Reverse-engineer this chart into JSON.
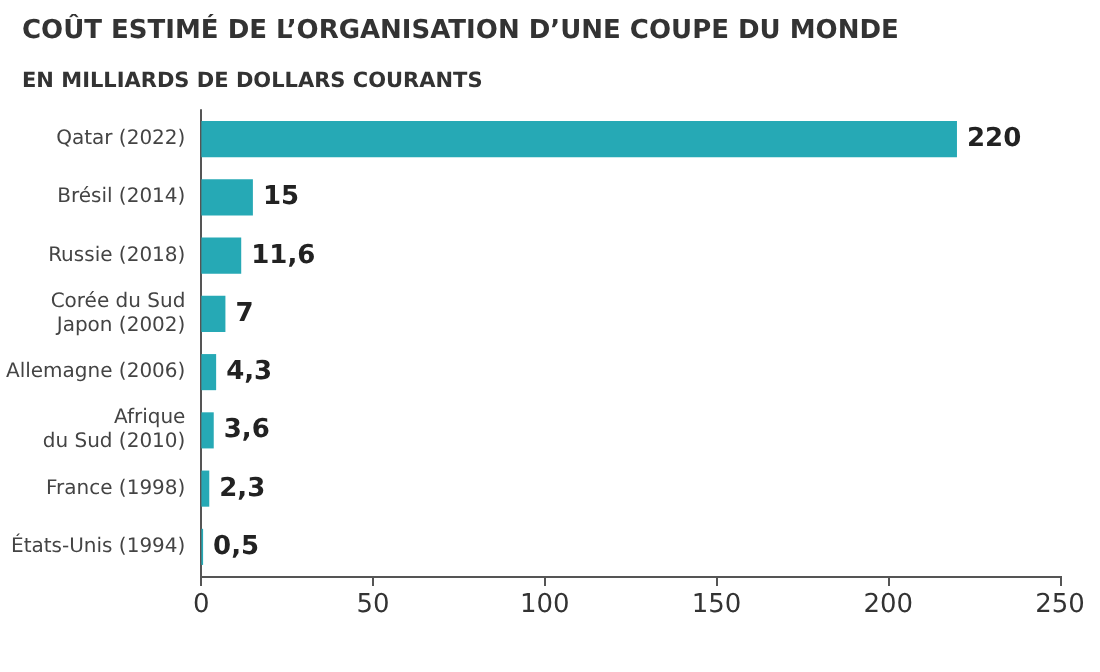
{
  "chart_data": {
    "type": "bar",
    "orientation": "horizontal",
    "title": "COÛT ESTIMÉ DE L’ORGANISATION D’UNE COUPE DU MONDE",
    "subtitle": "EN MILLIARDS DE DOLLARS COURANTS",
    "categories": [
      "Qatar (2022)",
      "Brésil (2014)",
      "Russie (2018)",
      "Corée du Sud\nJapon (2002)",
      "Allemagne (2006)",
      "Afrique\ndu Sud (2010)",
      "France (1998)",
      "États-Unis (1994)"
    ],
    "values": [
      220,
      15,
      11.6,
      7,
      4.3,
      3.6,
      2.3,
      0.5
    ],
    "value_labels": [
      "220",
      "15",
      "11,6",
      "7",
      "4,3",
      "3,6",
      "2,3",
      "0,5"
    ],
    "color": "#26a9b5",
    "xlim": [
      0,
      250
    ],
    "xticks": [
      0,
      50,
      100,
      150,
      200,
      250
    ],
    "grid": false
  }
}
